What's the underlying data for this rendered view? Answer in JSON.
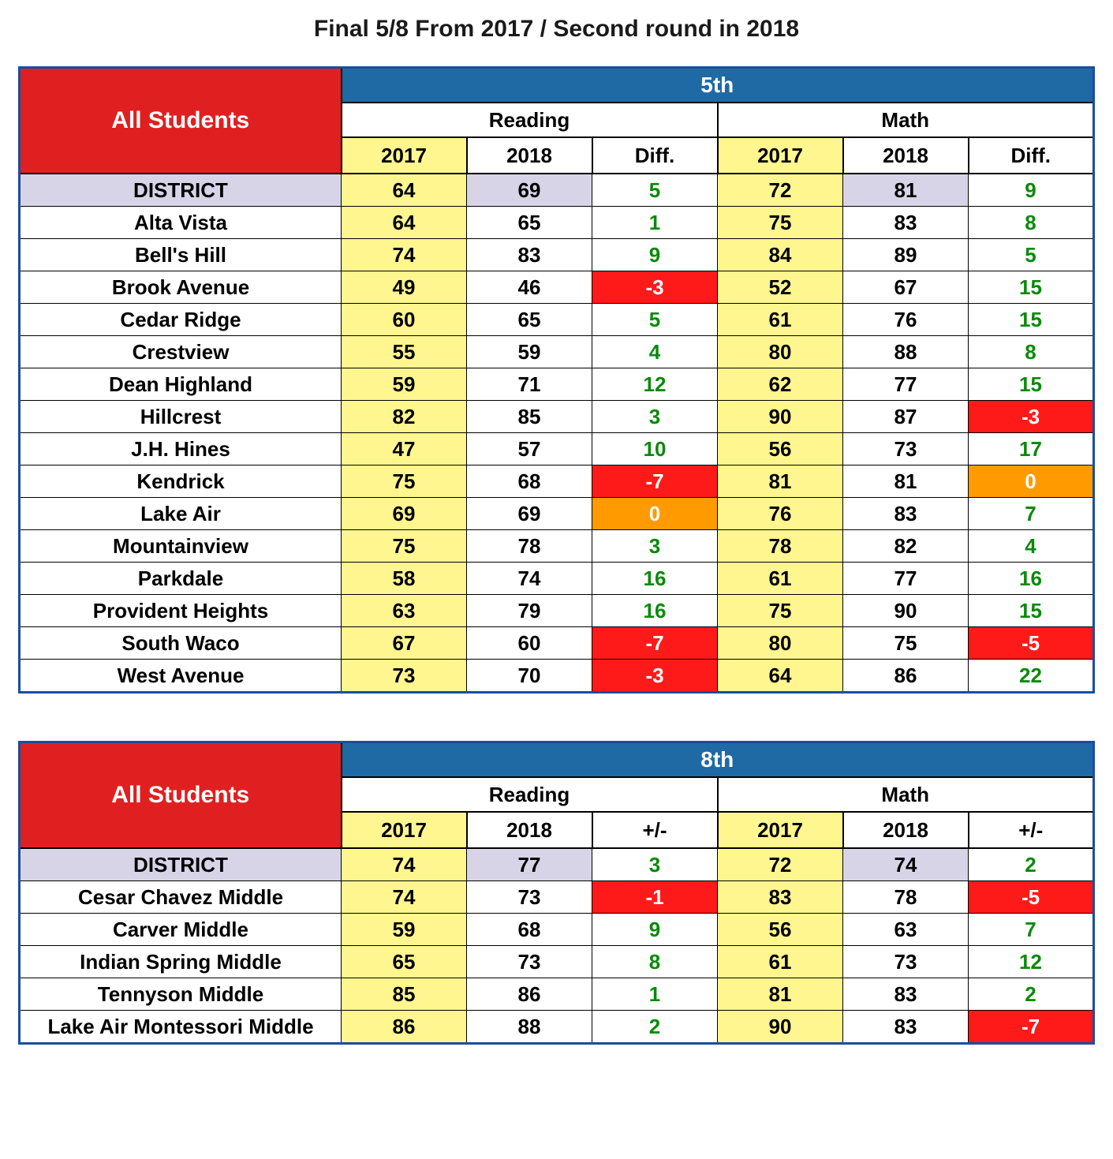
{
  "page_title": "Final 5/8 From 2017 / Second round in 2018",
  "header_left_label": "All Students",
  "subjects": {
    "reading": "Reading",
    "math": "Math"
  },
  "colors": {
    "border_blue": "#1a4da0",
    "grade_bg": "#1f6aa5",
    "left_bg": "#e02020",
    "y2017_bg": "#fff68f",
    "district_bg": "#d8d4e8",
    "diff_pos": "#0a8a0a",
    "diff_neg_bg": "#ff1a1a",
    "diff_zero_bg": "#ff9a00",
    "white": "#ffffff",
    "black": "#000000"
  },
  "fontsizes": {
    "title": 30,
    "header": 28,
    "cell": 26
  },
  "tables": [
    {
      "grade_label": "5th",
      "year_headers": [
        "2017",
        "2018",
        "Diff.",
        "2017",
        "2018",
        "Diff."
      ],
      "rows": [
        {
          "label": "DISTRICT",
          "district": true,
          "r2017": 64,
          "r2018": 69,
          "rdiff": 5,
          "m2017": 72,
          "m2018": 81,
          "mdiff": 9
        },
        {
          "label": "Alta Vista",
          "r2017": 64,
          "r2018": 65,
          "rdiff": 1,
          "m2017": 75,
          "m2018": 83,
          "mdiff": 8
        },
        {
          "label": "Bell's Hill",
          "r2017": 74,
          "r2018": 83,
          "rdiff": 9,
          "m2017": 84,
          "m2018": 89,
          "mdiff": 5
        },
        {
          "label": "Brook Avenue",
          "r2017": 49,
          "r2018": 46,
          "rdiff": -3,
          "m2017": 52,
          "m2018": 67,
          "mdiff": 15
        },
        {
          "label": "Cedar Ridge",
          "r2017": 60,
          "r2018": 65,
          "rdiff": 5,
          "m2017": 61,
          "m2018": 76,
          "mdiff": 15
        },
        {
          "label": "Crestview",
          "r2017": 55,
          "r2018": 59,
          "rdiff": 4,
          "m2017": 80,
          "m2018": 88,
          "mdiff": 8
        },
        {
          "label": "Dean Highland",
          "r2017": 59,
          "r2018": 71,
          "rdiff": 12,
          "m2017": 62,
          "m2018": 77,
          "mdiff": 15
        },
        {
          "label": "Hillcrest",
          "r2017": 82,
          "r2018": 85,
          "rdiff": 3,
          "m2017": 90,
          "m2018": 87,
          "mdiff": -3
        },
        {
          "label": "J.H. Hines",
          "r2017": 47,
          "r2018": 57,
          "rdiff": 10,
          "m2017": 56,
          "m2018": 73,
          "mdiff": 17
        },
        {
          "label": "Kendrick",
          "r2017": 75,
          "r2018": 68,
          "rdiff": -7,
          "m2017": 81,
          "m2018": 81,
          "mdiff": 0
        },
        {
          "label": "Lake Air",
          "r2017": 69,
          "r2018": 69,
          "rdiff": 0,
          "m2017": 76,
          "m2018": 83,
          "mdiff": 7
        },
        {
          "label": "Mountainview",
          "r2017": 75,
          "r2018": 78,
          "rdiff": 3,
          "m2017": 78,
          "m2018": 82,
          "mdiff": 4
        },
        {
          "label": "Parkdale",
          "r2017": 58,
          "r2018": 74,
          "rdiff": 16,
          "m2017": 61,
          "m2018": 77,
          "mdiff": 16
        },
        {
          "label": "Provident Heights",
          "r2017": 63,
          "r2018": 79,
          "rdiff": 16,
          "m2017": 75,
          "m2018": 90,
          "mdiff": 15
        },
        {
          "label": "South Waco",
          "r2017": 67,
          "r2018": 60,
          "rdiff": -7,
          "m2017": 80,
          "m2018": 75,
          "mdiff": -5
        },
        {
          "label": "West Avenue",
          "r2017": 73,
          "r2018": 70,
          "rdiff": -3,
          "m2017": 64,
          "m2018": 86,
          "mdiff": 22
        }
      ]
    },
    {
      "grade_label": "8th",
      "year_headers": [
        "2017",
        "2018",
        "+/-",
        "2017",
        "2018",
        "+/-"
      ],
      "rows": [
        {
          "label": "DISTRICT",
          "district": true,
          "r2017": 74,
          "r2018": 77,
          "rdiff": 3,
          "m2017": 72,
          "m2018": 74,
          "mdiff": 2
        },
        {
          "label": "Cesar Chavez Middle",
          "r2017": 74,
          "r2018": 73,
          "rdiff": -1,
          "m2017": 83,
          "m2018": 78,
          "mdiff": -5
        },
        {
          "label": "Carver Middle",
          "r2017": 59,
          "r2018": 68,
          "rdiff": 9,
          "m2017": 56,
          "m2018": 63,
          "mdiff": 7
        },
        {
          "label": "Indian Spring Middle",
          "r2017": 65,
          "r2018": 73,
          "rdiff": 8,
          "m2017": 61,
          "m2018": 73,
          "mdiff": 12
        },
        {
          "label": "Tennyson Middle",
          "r2017": 85,
          "r2018": 86,
          "rdiff": 1,
          "m2017": 81,
          "m2018": 83,
          "mdiff": 2
        },
        {
          "label": "Lake Air Montessori Middle",
          "r2017": 86,
          "r2018": 88,
          "rdiff": 2,
          "m2017": 90,
          "m2018": 83,
          "mdiff": -7
        }
      ]
    }
  ]
}
